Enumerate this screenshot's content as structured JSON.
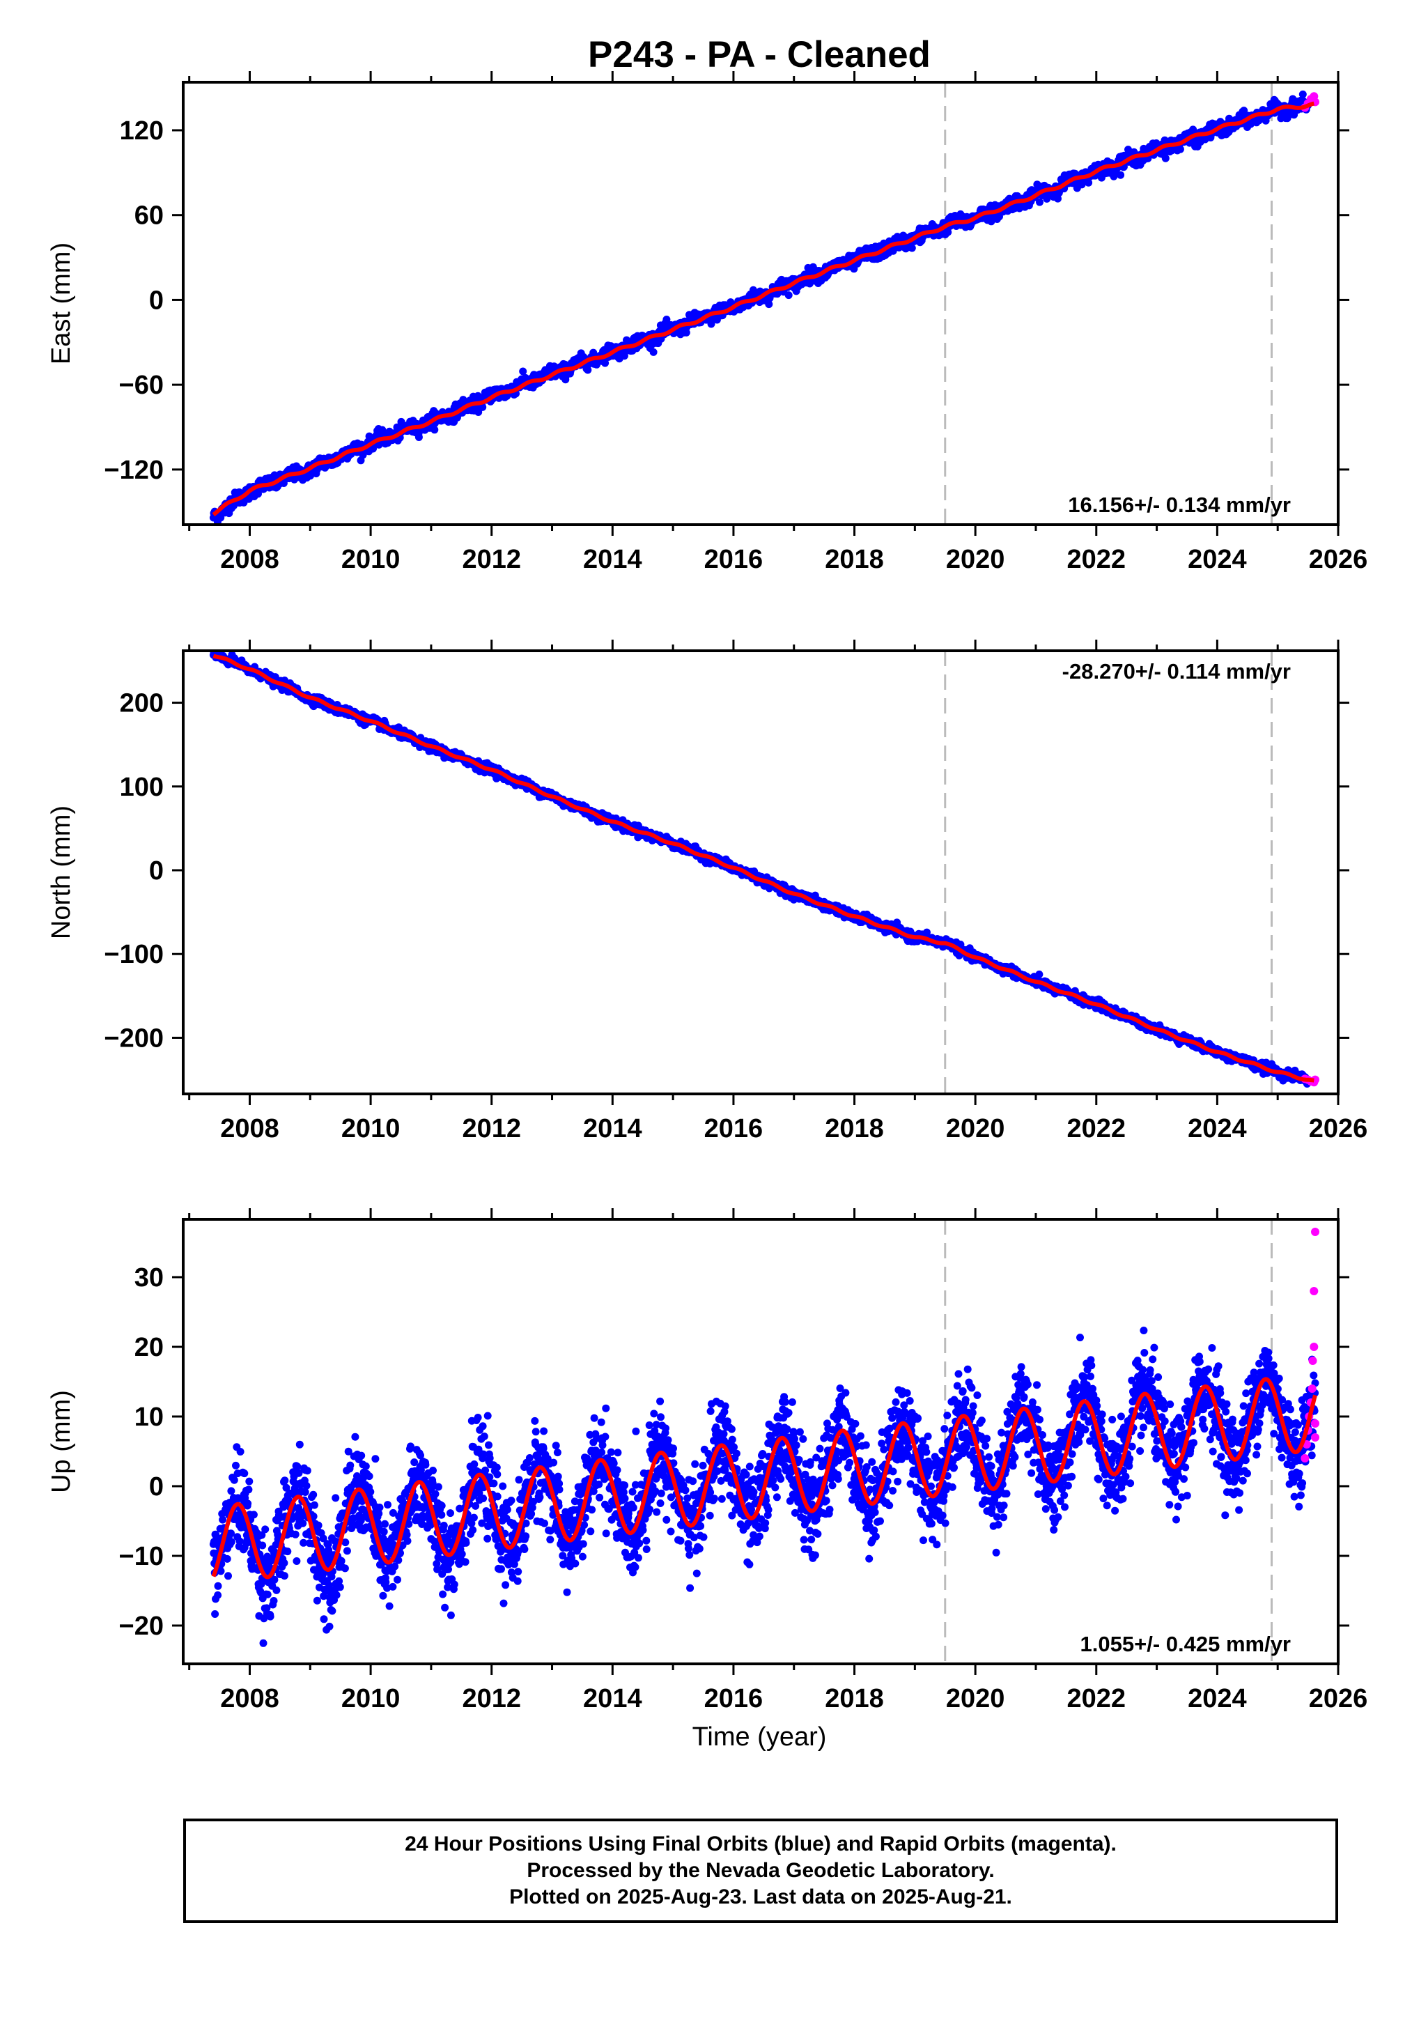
{
  "figure": {
    "title": "P243  - PA - Cleaned",
    "xlabel": "Time (year)",
    "caption": [
      "24 Hour Positions Using Final Orbits (blue) and Rapid Orbits (magenta).",
      "Processed by the Nevada Geodetic Laboratory.",
      "Plotted on 2025-Aug-23. Last data on 2025-Aug-21."
    ],
    "colors": {
      "final_orbits": "#0000ff",
      "rapid_orbits": "#ff00ff",
      "model_fit": "#ff0000",
      "equipment_change_lines": "#bbbbbb"
    }
  },
  "chart_data": [
    {
      "type": "scatter",
      "ylabel": "East (mm)",
      "rate_label": "16.156+/- 0.134 mm/yr",
      "xlim": [
        2006.9,
        2026.0
      ],
      "ylim": [
        -159,
        154
      ],
      "xticks": [
        2008,
        2010,
        2012,
        2014,
        2016,
        2018,
        2020,
        2022,
        2024,
        2026
      ],
      "xtick_labels": [
        "2008",
        "2010",
        "2012",
        "2014",
        "2016",
        "2018",
        "2020",
        "2022",
        "2024",
        "2026"
      ],
      "yticks": [
        -120,
        -60,
        0,
        60,
        120
      ],
      "ytick_labels": [
        "−120",
        "−60",
        "0",
        "60",
        "120"
      ],
      "equipment_changes": [
        2019.5,
        2024.9
      ],
      "series": [
        {
          "role": "final_orbits",
          "x": [
            2007.4,
            2008.0,
            2009.0,
            2010.0,
            2011.0,
            2012.0,
            2013.0,
            2014.0,
            2015.0,
            2016.0,
            2017.0,
            2018.0,
            2019.0,
            2019.5,
            2020.0,
            2021.0,
            2022.0,
            2023.0,
            2024.0,
            2025.0,
            2025.5
          ],
          "y": [
            -153,
            -135,
            -120,
            -101,
            -86,
            -68,
            -52,
            -37,
            -21,
            -5,
            12,
            28,
            44,
            52,
            58,
            74,
            91,
            106,
            120,
            135,
            138
          ]
        },
        {
          "role": "rapid_orbits",
          "x": [
            2025.45,
            2025.5,
            2025.55,
            2025.6,
            2025.62
          ],
          "y": [
            136,
            139,
            142,
            144,
            140
          ]
        },
        {
          "role": "model_fit",
          "x": [
            2007.4,
            2008.0,
            2009.0,
            2010.0,
            2011.0,
            2012.0,
            2013.0,
            2014.0,
            2015.0,
            2016.0,
            2017.0,
            2018.0,
            2019.0,
            2019.5,
            2020.0,
            2021.0,
            2022.0,
            2023.0,
            2024.0,
            2025.0,
            2025.6
          ],
          "y": [
            -151,
            -135,
            -119,
            -102,
            -86,
            -69,
            -53,
            -37,
            -21,
            -5,
            12,
            28,
            44,
            52,
            58,
            74,
            91,
            106,
            121,
            135,
            138
          ]
        }
      ]
    },
    {
      "type": "scatter",
      "ylabel": "North (mm)",
      "rate_label": "-28.270+/- 0.114 mm/yr",
      "xlim": [
        2006.9,
        2026.0
      ],
      "ylim": [
        -267,
        262
      ],
      "xticks": [
        2008,
        2010,
        2012,
        2014,
        2016,
        2018,
        2020,
        2022,
        2024,
        2026
      ],
      "xtick_labels": [
        "2008",
        "2010",
        "2012",
        "2014",
        "2016",
        "2018",
        "2020",
        "2022",
        "2024",
        "2026"
      ],
      "yticks": [
        -200,
        -100,
        0,
        100,
        200
      ],
      "ytick_labels": [
        "−200",
        "−100",
        "0",
        "100",
        "200"
      ],
      "equipment_changes": [
        2019.5,
        2024.9
      ],
      "series": [
        {
          "role": "final_orbits",
          "x": [
            2007.4,
            2008.0,
            2009.0,
            2010.0,
            2011.0,
            2012.0,
            2013.0,
            2014.0,
            2015.0,
            2016.0,
            2017.0,
            2018.0,
            2019.0,
            2019.5,
            2020.0,
            2021.0,
            2022.0,
            2023.0,
            2024.0,
            2025.0,
            2025.5
          ],
          "y": [
            258,
            240,
            205,
            178,
            147,
            120,
            88,
            58,
            32,
            3,
            -28,
            -55,
            -80,
            -86,
            -104,
            -133,
            -160,
            -190,
            -217,
            -241,
            -250
          ]
        },
        {
          "role": "rapid_orbits",
          "x": [
            2025.45,
            2025.5,
            2025.55,
            2025.6,
            2025.62
          ],
          "y": [
            -249,
            -250,
            -252,
            -253,
            -250
          ]
        },
        {
          "role": "model_fit",
          "x": [
            2007.4,
            2008.0,
            2009.0,
            2010.0,
            2011.0,
            2012.0,
            2013.0,
            2014.0,
            2015.0,
            2016.0,
            2017.0,
            2018.0,
            2019.0,
            2019.5,
            2020.0,
            2021.0,
            2022.0,
            2023.0,
            2024.0,
            2025.0,
            2025.6
          ],
          "y": [
            257,
            240,
            206,
            178,
            148,
            120,
            88,
            58,
            32,
            3,
            -28,
            -55,
            -80,
            -87,
            -104,
            -133,
            -160,
            -190,
            -217,
            -241,
            -252
          ]
        }
      ]
    },
    {
      "type": "scatter",
      "ylabel": "Up (mm)",
      "rate_label": "1.055+/- 0.425 mm/yr",
      "xlim": [
        2006.9,
        2026.0
      ],
      "ylim": [
        -25.5,
        38.3
      ],
      "xticks": [
        2008,
        2010,
        2012,
        2014,
        2016,
        2018,
        2020,
        2022,
        2024,
        2026
      ],
      "xtick_labels": [
        "2008",
        "2010",
        "2012",
        "2014",
        "2016",
        "2018",
        "2020",
        "2022",
        "2024",
        "2026"
      ],
      "yticks": [
        -20,
        -10,
        0,
        10,
        20,
        30
      ],
      "ytick_labels": [
        "−20",
        "−10",
        "0",
        "10",
        "20",
        "30"
      ],
      "equipment_changes": [
        2019.5,
        2024.9
      ],
      "fit_model": {
        "rate_mm_per_yr": 1.055,
        "seasonal_amplitude_mm": 5.5,
        "seasonal_peak_fraction_of_year": 0.8,
        "offset_mm": -8.5,
        "reference_year": 2007.4
      },
      "series": [
        {
          "role": "final_orbits",
          "x_start": 2007.4,
          "x_end": 2025.62,
          "scatter_std_mm": 3.2,
          "y_at_x_start": -8.5,
          "y_at_x_end": 7.0
        },
        {
          "role": "rapid_orbits",
          "x": [
            2025.45,
            2025.48,
            2025.5,
            2025.52,
            2025.55,
            2025.57,
            2025.58,
            2025.6,
            2025.6,
            2025.62,
            2025.62,
            2025.62
          ],
          "y": [
            4,
            6,
            8,
            10,
            12,
            14,
            18,
            20,
            28,
            36.5,
            9,
            7
          ]
        }
      ]
    }
  ]
}
